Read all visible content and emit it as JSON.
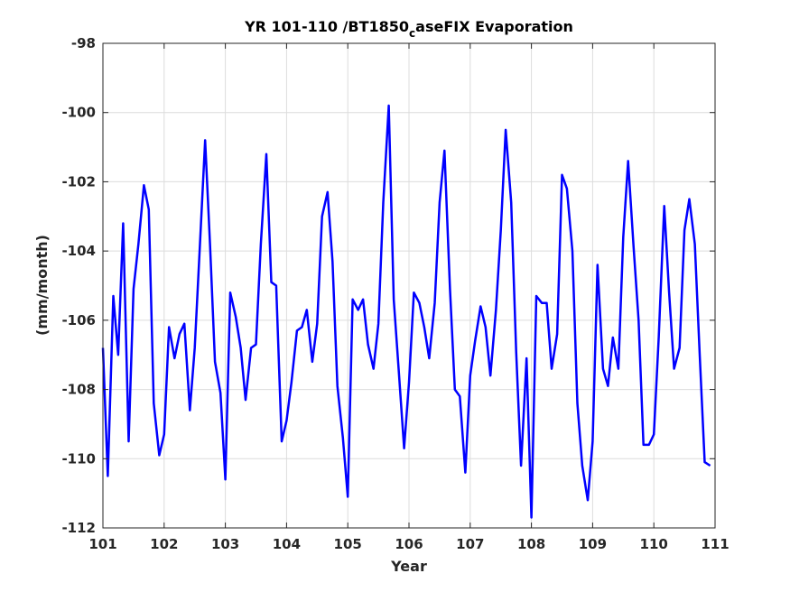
{
  "chart_data": {
    "type": "line",
    "title_main": "YR 101-110 /BT1850",
    "title_sub": "c",
    "title_end": "aseFIX Evaporation",
    "xlabel": "Year",
    "ylabel": "(mm/month)",
    "xlim": [
      101,
      111
    ],
    "ylim": [
      -112,
      -98
    ],
    "xticks": [
      101,
      102,
      103,
      104,
      105,
      106,
      107,
      108,
      109,
      110,
      111
    ],
    "yticks": [
      -112,
      -110,
      -108,
      -106,
      -104,
      -102,
      -100,
      -98
    ],
    "grid": true,
    "series": [
      {
        "color": "#0000ff",
        "x": [
          101.0,
          101.08,
          101.17,
          101.25,
          101.33,
          101.42,
          101.5,
          101.58,
          101.67,
          101.75,
          101.83,
          101.92,
          102.0,
          102.08,
          102.17,
          102.25,
          102.33,
          102.42,
          102.5,
          102.58,
          102.67,
          102.75,
          102.83,
          102.92,
          103.0,
          103.08,
          103.17,
          103.25,
          103.33,
          103.42,
          103.5,
          103.58,
          103.67,
          103.75,
          103.83,
          103.92,
          104.0,
          104.08,
          104.17,
          104.25,
          104.33,
          104.42,
          104.5,
          104.58,
          104.67,
          104.75,
          104.83,
          104.92,
          105.0,
          105.08,
          105.17,
          105.25,
          105.33,
          105.42,
          105.5,
          105.58,
          105.67,
          105.75,
          105.83,
          105.92,
          106.0,
          106.08,
          106.17,
          106.25,
          106.33,
          106.42,
          106.5,
          106.58,
          106.67,
          106.75,
          106.83,
          106.92,
          107.0,
          107.08,
          107.17,
          107.25,
          107.33,
          107.42,
          107.5,
          107.58,
          107.67,
          107.75,
          107.83,
          107.92,
          108.0,
          108.08,
          108.17,
          108.25,
          108.33,
          108.42,
          108.5,
          108.58,
          108.67,
          108.75,
          108.83,
          108.92,
          109.0,
          109.08,
          109.17,
          109.25,
          109.33,
          109.42,
          109.5,
          109.58,
          109.67,
          109.75,
          109.83,
          109.92,
          110.0,
          110.08,
          110.17,
          110.25,
          110.33,
          110.42,
          110.5,
          110.58,
          110.67,
          110.75,
          110.83,
          110.92
        ],
        "y": [
          -106.8,
          -110.5,
          -105.3,
          -107.0,
          -103.2,
          -109.5,
          -105.1,
          -103.8,
          -102.1,
          -102.8,
          -108.4,
          -109.9,
          -109.3,
          -106.2,
          -107.1,
          -106.4,
          -106.1,
          -108.6,
          -106.8,
          -104.0,
          -100.8,
          -103.8,
          -107.2,
          -108.1,
          -110.6,
          -105.2,
          -105.9,
          -106.8,
          -108.3,
          -106.8,
          -106.7,
          -103.8,
          -101.2,
          -104.9,
          -105.0,
          -109.5,
          -108.9,
          -107.8,
          -106.3,
          -106.2,
          -105.7,
          -107.2,
          -106.1,
          -103.0,
          -102.3,
          -104.3,
          -107.9,
          -109.4,
          -111.1,
          -105.4,
          -105.7,
          -105.4,
          -106.7,
          -107.4,
          -106.1,
          -102.6,
          -99.8,
          -105.4,
          -107.4,
          -109.7,
          -107.8,
          -105.2,
          -105.5,
          -106.2,
          -107.1,
          -105.5,
          -102.6,
          -101.1,
          -105.1,
          -108.0,
          -108.2,
          -110.4,
          -107.6,
          -106.6,
          -105.6,
          -106.2,
          -107.6,
          -105.7,
          -103.4,
          -100.5,
          -102.6,
          -106.9,
          -110.2,
          -107.1,
          -111.7,
          -105.3,
          -105.5,
          -105.5,
          -107.4,
          -106.4,
          -101.8,
          -102.2,
          -104.0,
          -108.4,
          -110.2,
          -111.2,
          -109.5,
          -104.4,
          -107.4,
          -107.9,
          -106.5,
          -107.4,
          -103.6,
          -101.4,
          -103.9,
          -106.0,
          -109.6,
          -109.6,
          -109.3,
          -106.5,
          -102.7,
          -105.2,
          -107.4,
          -106.8,
          -103.4,
          -102.5,
          -103.8,
          -107.0,
          -110.1,
          -110.2
        ]
      }
    ]
  }
}
